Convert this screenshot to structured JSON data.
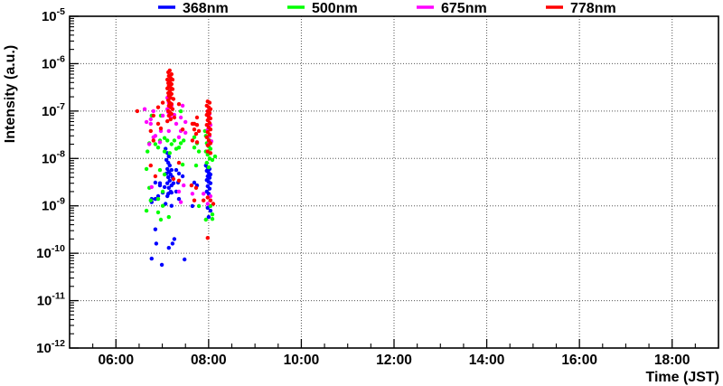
{
  "page": {
    "background": "#ffffff"
  },
  "chart_data": {
    "type": "scatter",
    "title": "",
    "xlabel": "Time (JST)",
    "ylabel": "Intensity (a.u.)",
    "grid": true,
    "x_axis": {
      "unit": "hour_of_day_JST",
      "min_hour": 5,
      "max_hour": 19,
      "major_ticks": [
        {
          "hour": 6,
          "label": "06:00"
        },
        {
          "hour": 8,
          "label": "08:00"
        },
        {
          "hour": 10,
          "label": "10:00"
        },
        {
          "hour": 12,
          "label": "12:00"
        },
        {
          "hour": 14,
          "label": "14:00"
        },
        {
          "hour": 16,
          "label": "16:00"
        },
        {
          "hour": 18,
          "label": "18:00"
        }
      ],
      "minor_interval_hours": 0.5
    },
    "y_axis": {
      "scale": "log",
      "max_exp": -5,
      "min_exp": -12,
      "decade_labels": [
        -5,
        -6,
        -7,
        -8,
        -9,
        -10,
        -11,
        -12
      ]
    },
    "legend": {
      "position": "top",
      "entries": [
        {
          "label": "368nm",
          "color": "#0000ff"
        },
        {
          "label": "500nm",
          "color": "#00ff00"
        },
        {
          "label": "675nm",
          "color": "#ff00ff"
        },
        {
          "label": "778nm",
          "color": "#ff0000"
        }
      ]
    },
    "series": [
      {
        "name": "368nm",
        "color": "#0000ff",
        "marker": "circle",
        "points": [
          [
            7.07,
            1.6e-08
          ],
          [
            7.11,
            1.3e-08
          ],
          [
            7.14,
            1.1e-08
          ],
          [
            7.09,
            9.3e-09
          ],
          [
            7.13,
            8.1e-09
          ],
          [
            7.16,
            7.1e-09
          ],
          [
            7.11,
            6e-09
          ],
          [
            7.14,
            5.2e-09
          ],
          [
            7.18,
            4.6e-09
          ],
          [
            7.13,
            4e-09
          ],
          [
            7.16,
            3.4e-09
          ],
          [
            7.11,
            3e-09
          ],
          [
            7.2,
            2.7e-09
          ],
          [
            7.14,
            2.4e-09
          ],
          [
            7.18,
            2e-09
          ],
          [
            7.13,
            1.8e-09
          ],
          [
            7.2,
            5.7e-09
          ],
          [
            7.22,
            4e-09
          ],
          [
            7.24,
            3e-09
          ],
          [
            7.09,
            4.8e-09
          ],
          [
            6.85,
            3.1e-09
          ],
          [
            6.95,
            2.7e-09
          ],
          [
            6.77,
            1.4e-09
          ],
          [
            6.91,
            1.6e-09
          ],
          [
            7.11,
            1.6e-09
          ],
          [
            7.2,
            1.9e-09
          ],
          [
            7.3,
            2e-09
          ],
          [
            7.36,
            1.4e-09
          ],
          [
            7.2,
            1e-09
          ],
          [
            7.07,
            1.1e-09
          ],
          [
            6.77,
            1.2e-09
          ],
          [
            7.3,
            5.7e-09
          ],
          [
            7.36,
            4.8e-09
          ],
          [
            7.44,
            4.2e-09
          ],
          [
            7.34,
            3.1e-09
          ],
          [
            6.95,
            3e-09
          ],
          [
            7.05,
            2.5e-09
          ],
          [
            6.85,
            1.4e-09
          ],
          [
            7.01,
            1.9e-09
          ],
          [
            6.85,
            3.2e-10
          ],
          [
            6.87,
            1.6e-10
          ],
          [
            7.26,
            2e-10
          ],
          [
            7.14,
            1.3e-10
          ],
          [
            7.22,
            1.6e-10
          ],
          [
            6.77,
            7.7e-11
          ],
          [
            6.99,
            5.7e-11
          ],
          [
            7.48,
            7.4e-11
          ],
          [
            7.69,
            3.1e-09
          ],
          [
            7.75,
            2.7e-09
          ],
          [
            7.65,
            9.9e-10
          ],
          [
            7.94,
            7.1e-09
          ],
          [
            7.98,
            6.5e-09
          ],
          [
            8.02,
            6e-09
          ],
          [
            7.96,
            5.5e-09
          ],
          [
            8.0,
            5e-09
          ],
          [
            8.04,
            4.6e-09
          ],
          [
            7.98,
            4.2e-09
          ],
          [
            8.02,
            3.9e-09
          ],
          [
            7.96,
            3.5e-09
          ],
          [
            8.0,
            3.2e-09
          ],
          [
            8.04,
            3e-09
          ],
          [
            7.98,
            2.6e-09
          ],
          [
            8.02,
            2.3e-09
          ],
          [
            7.96,
            2e-09
          ],
          [
            8.0,
            1.8e-09
          ],
          [
            7.98,
            9.1e-10
          ],
          [
            8.04,
            7.9e-10
          ],
          [
            8.0,
            5.8e-10
          ]
        ]
      },
      {
        "name": "500nm",
        "color": "#00ff00",
        "marker": "circle",
        "points": [
          [
            7.4,
            9.9e-08
          ],
          [
            6.77,
            8e-08
          ],
          [
            6.97,
            8e-08
          ],
          [
            7.05,
            2.7e-08
          ],
          [
            6.91,
            1.7e-08
          ],
          [
            6.68,
            1.4e-08
          ],
          [
            6.72,
            2.1e-08
          ],
          [
            6.85,
            2e-08
          ],
          [
            6.95,
            2.4e-08
          ],
          [
            7.11,
            2.4e-08
          ],
          [
            7.2,
            2e-08
          ],
          [
            7.26,
            2.4e-08
          ],
          [
            7.3,
            1.6e-08
          ],
          [
            7.16,
            1.3e-08
          ],
          [
            7.05,
            1.4e-08
          ],
          [
            7.4,
            2.1e-08
          ],
          [
            7.46,
            2.4e-08
          ],
          [
            7.36,
            1.7e-08
          ],
          [
            6.66,
            6e-09
          ],
          [
            6.95,
            5.7e-09
          ],
          [
            7.05,
            4.6e-09
          ],
          [
            7.44,
            7.4e-09
          ],
          [
            6.72,
            2.4e-09
          ],
          [
            7.01,
            2e-09
          ],
          [
            6.75,
            1.3e-09
          ],
          [
            6.91,
            1.4e-09
          ],
          [
            7.01,
            1e-09
          ],
          [
            6.91,
            7.3e-10
          ],
          [
            6.66,
            7.9e-10
          ],
          [
            6.97,
            5.1e-10
          ],
          [
            7.14,
            5.8e-10
          ],
          [
            7.69,
            1.7e-08
          ],
          [
            7.79,
            1.4e-08
          ],
          [
            7.73,
            7.1e-09
          ],
          [
            7.69,
            2.8e-08
          ],
          [
            7.75,
            2.1e-08
          ],
          [
            7.92,
            3.8e-08
          ],
          [
            7.94,
            3e-08
          ],
          [
            7.98,
            2.8e-08
          ],
          [
            8.02,
            2.4e-08
          ],
          [
            7.96,
            2.1e-08
          ],
          [
            8.0,
            1.8e-08
          ],
          [
            8.04,
            1.6e-08
          ],
          [
            7.94,
            1.4e-08
          ],
          [
            7.98,
            1.2e-08
          ],
          [
            8.02,
            1e-08
          ],
          [
            8.08,
            9.3e-09
          ],
          [
            7.96,
            8.1e-09
          ],
          [
            8.0,
            6.5e-09
          ],
          [
            8.14,
            1.1e-08
          ],
          [
            8.08,
            6.6e-10
          ],
          [
            8.04,
            9.9e-10
          ],
          [
            7.94,
            5.1e-10
          ],
          [
            7.79,
            9.9e-10
          ],
          [
            8.08,
            5.3e-10
          ]
        ]
      },
      {
        "name": "675nm",
        "color": "#ff00ff",
        "marker": "circle",
        "points": [
          [
            6.62,
            1.1e-07
          ],
          [
            6.75,
            6.7e-08
          ],
          [
            6.66,
            5.9e-08
          ],
          [
            6.85,
            3e-08
          ],
          [
            6.72,
            2e-08
          ],
          [
            6.95,
            2.2e-08
          ],
          [
            7.01,
            8e-08
          ],
          [
            6.81,
            1e-07
          ],
          [
            6.75,
            5.4e-08
          ],
          [
            6.97,
            3.8e-08
          ],
          [
            6.81,
            2.8e-08
          ],
          [
            7.11,
            1.9e-07
          ],
          [
            7.14,
            1.5e-07
          ],
          [
            7.2,
            1.3e-07
          ],
          [
            7.13,
            9.5e-08
          ],
          [
            7.18,
            7.3e-08
          ],
          [
            7.11,
            1.1e-07
          ],
          [
            7.2,
            1.4e-07
          ],
          [
            7.26,
            8.3e-08
          ],
          [
            7.3,
            5.4e-08
          ],
          [
            7.14,
            3.8e-08
          ],
          [
            7.4,
            3.8e-08
          ],
          [
            7.5,
            3.5e-08
          ],
          [
            7.44,
            1.3e-07
          ],
          [
            7.4,
            7.3e-08
          ],
          [
            7.5,
            5.9e-08
          ],
          [
            7.36,
            2.8e-08
          ],
          [
            7.36,
            2e-09
          ],
          [
            7.46,
            2.7e-09
          ],
          [
            7.4,
            1.2e-09
          ],
          [
            7.65,
            1.8e-09
          ],
          [
            7.89,
            1.8e-09
          ],
          [
            6.77,
            2.5e-09
          ],
          [
            7.98,
            1e-07
          ],
          [
            8.02,
            8.7e-08
          ],
          [
            8.0,
            6.7e-08
          ],
          [
            8.04,
            5.1e-08
          ],
          [
            7.98,
            4e-08
          ],
          [
            8.02,
            3e-08
          ],
          [
            8.06,
            2.3e-08
          ],
          [
            8.0,
            2e-08
          ],
          [
            8.04,
            1.6e-09
          ],
          [
            7.98,
            1.1e-09
          ]
        ]
      },
      {
        "name": "778nm",
        "color": "#ff0000",
        "marker": "circle",
        "points": [
          [
            7.13,
            6.6e-07
          ],
          [
            7.16,
            7.2e-07
          ],
          [
            7.2,
            6e-07
          ],
          [
            7.14,
            5.5e-07
          ],
          [
            7.18,
            5e-07
          ],
          [
            7.11,
            4.6e-07
          ],
          [
            7.22,
            4.6e-07
          ],
          [
            7.16,
            4.2e-07
          ],
          [
            7.13,
            3.9e-07
          ],
          [
            7.2,
            3.7e-07
          ],
          [
            7.14,
            3.4e-07
          ],
          [
            7.18,
            3.1e-07
          ],
          [
            7.11,
            3e-07
          ],
          [
            7.22,
            2.9e-07
          ],
          [
            7.16,
            2.6e-07
          ],
          [
            7.13,
            2.4e-07
          ],
          [
            7.2,
            2.3e-07
          ],
          [
            7.14,
            2.1e-07
          ],
          [
            7.18,
            1.9e-07
          ],
          [
            7.24,
            1.8e-07
          ],
          [
            7.13,
            1.7e-07
          ],
          [
            7.16,
            1.5e-07
          ],
          [
            7.2,
            1.4e-07
          ],
          [
            7.14,
            1.3e-07
          ],
          [
            7.18,
            1.2e-07
          ],
          [
            7.22,
            1.1e-07
          ],
          [
            7.13,
            1e-07
          ],
          [
            7.16,
            9.5e-08
          ],
          [
            7.2,
            8.7e-08
          ],
          [
            7.14,
            8e-08
          ],
          [
            7.26,
            7.3e-08
          ],
          [
            7.18,
            6.7e-08
          ],
          [
            7.11,
            6.1e-08
          ],
          [
            6.91,
            1.2e-07
          ],
          [
            7.01,
            1.5e-07
          ],
          [
            6.81,
            8e-08
          ],
          [
            6.91,
            5.4e-08
          ],
          [
            6.97,
            4.3e-08
          ],
          [
            6.81,
            2.4e-08
          ],
          [
            6.75,
            3.8e-08
          ],
          [
            6.46,
            1e-07
          ],
          [
            6.75,
            7.1e-09
          ],
          [
            6.85,
            4.2e-09
          ],
          [
            7.24,
            3.7e-09
          ],
          [
            7.36,
            3.4e-09
          ],
          [
            7.36,
            1.4e-07
          ],
          [
            7.44,
            4.1e-08
          ],
          [
            7.36,
            8.1e-09
          ],
          [
            7.65,
            5.4e-08
          ],
          [
            7.69,
            5.4e-08
          ],
          [
            7.75,
            5.1e-08
          ],
          [
            7.73,
            3.3e-08
          ],
          [
            7.75,
            2.2e-08
          ],
          [
            7.65,
            2.4e-08
          ],
          [
            7.69,
            4.1e-08
          ],
          [
            7.75,
            7.3e-08
          ],
          [
            7.79,
            3.8e-08
          ],
          [
            7.63,
            2.7e-09
          ],
          [
            7.73,
            2.4e-09
          ],
          [
            7.69,
            1.3e-09
          ],
          [
            7.89,
            1.3e-09
          ],
          [
            7.98,
            1.6e-07
          ],
          [
            8.02,
            1.5e-07
          ],
          [
            7.96,
            1.3e-07
          ],
          [
            8.0,
            1.2e-07
          ],
          [
            8.04,
            1.1e-07
          ],
          [
            7.98,
            9.9e-08
          ],
          [
            8.02,
            9.1e-08
          ],
          [
            7.96,
            8.3e-08
          ],
          [
            8.0,
            7.6e-08
          ],
          [
            8.04,
            7e-08
          ],
          [
            7.98,
            6.4e-08
          ],
          [
            8.02,
            5.6e-08
          ],
          [
            7.96,
            5.1e-08
          ],
          [
            8.0,
            4.5e-08
          ],
          [
            8.04,
            4.1e-08
          ],
          [
            7.98,
            3.6e-08
          ],
          [
            8.02,
            3.2e-08
          ],
          [
            7.96,
            2.8e-08
          ],
          [
            8.0,
            2.4e-08
          ],
          [
            8.04,
            2.1e-08
          ],
          [
            7.98,
            1.9e-08
          ],
          [
            7.98,
            1.4e-08
          ],
          [
            8.04,
            1.3e-08
          ],
          [
            7.98,
            1.5e-09
          ],
          [
            8.04,
            1.3e-09
          ],
          [
            7.98,
            2.1e-10
          ],
          [
            8.1,
            1.1e-09
          ]
        ]
      }
    ]
  }
}
